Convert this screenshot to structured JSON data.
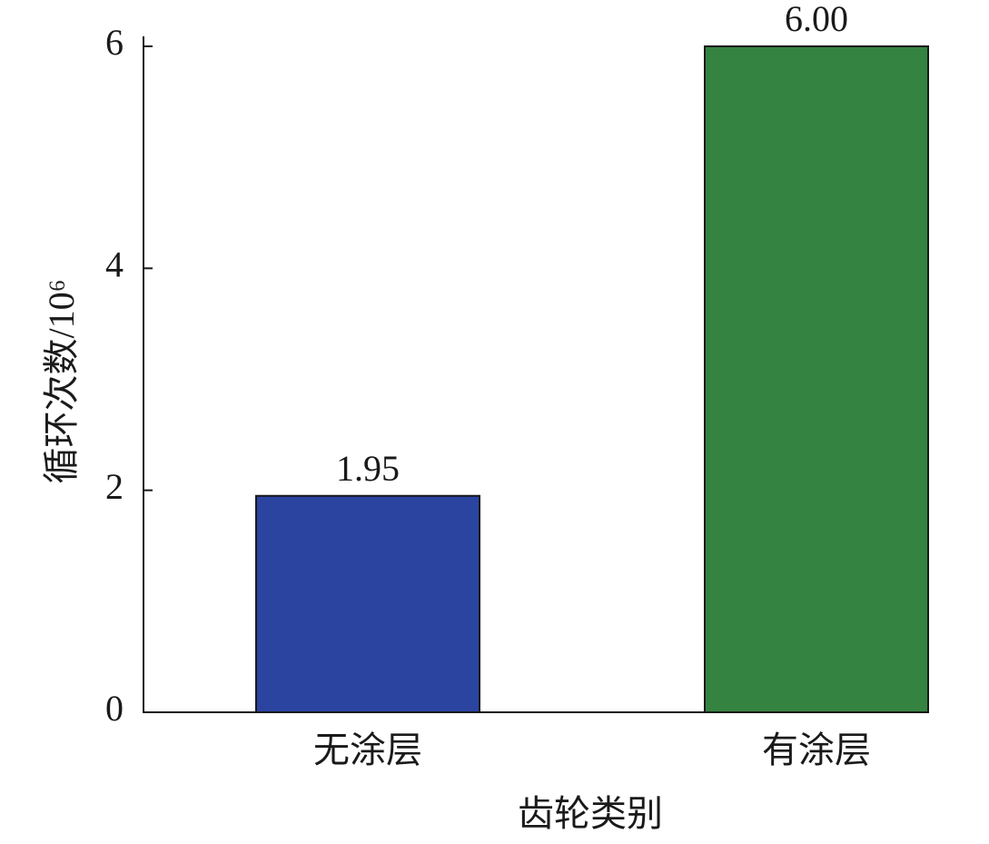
{
  "chart_data": {
    "type": "bar",
    "x_label": "齿轮类别",
    "y_label": "循环次数/10⁶",
    "categories": [
      "无涂层",
      "有涂层"
    ],
    "values": [
      1.95,
      6
    ],
    "value_labels": [
      "1.95",
      "6.00"
    ],
    "colors": [
      "#2a44a0",
      "#358340"
    ],
    "ylim": [
      0,
      6
    ],
    "yticks": [
      0,
      2,
      4,
      6
    ],
    "grid": false
  }
}
